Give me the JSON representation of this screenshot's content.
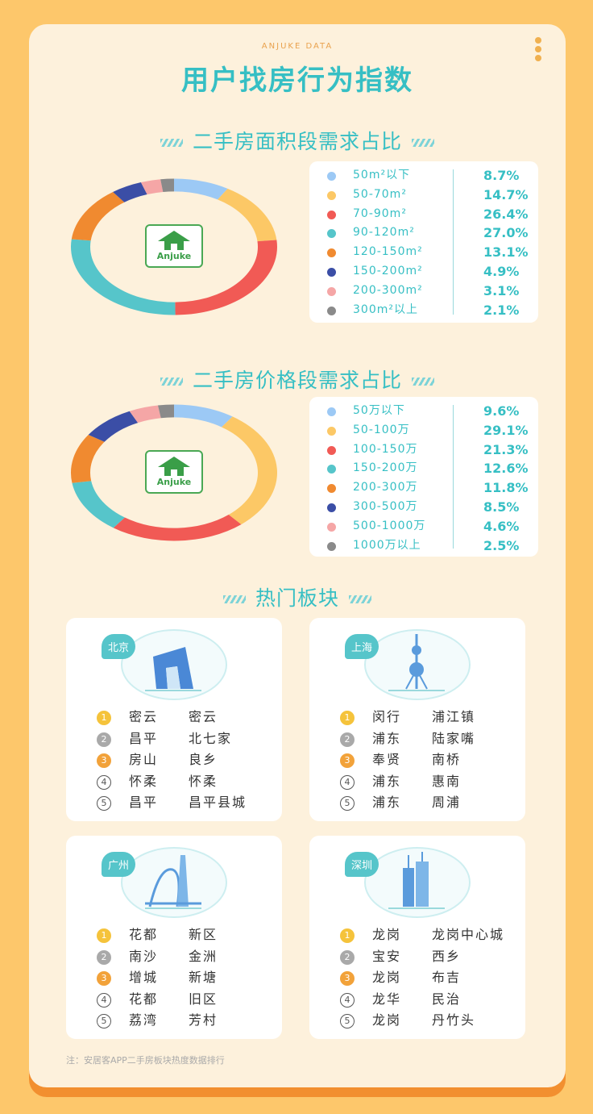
{
  "header": {
    "brand": "ANJUKE DATA",
    "title": "用户找房行为指数"
  },
  "sections": {
    "area": "二手房面积段需求占比",
    "price": "二手房价格段需求占比",
    "hot": "热门板块"
  },
  "logo_text": "Anjuke",
  "chart_data": [
    {
      "type": "pie",
      "title": "二手房面积段需求占比",
      "categories": [
        "50m²以下",
        "50-70m²",
        "70-90m²",
        "90-120m²",
        "120-150m²",
        "150-200m²",
        "200-300m²",
        "300m²以上"
      ],
      "values": [
        8.7,
        14.7,
        26.4,
        27.0,
        13.1,
        4.9,
        3.1,
        2.1
      ],
      "labels": [
        "8.7%",
        "14.7%",
        "26.4%",
        "27.0%",
        "13.1%",
        "4.9%",
        "3.1%",
        "2.1%"
      ],
      "colors": [
        "#9cc9f5",
        "#fcc866",
        "#f15a55",
        "#56c5ca",
        "#f08a30",
        "#3b4ea6",
        "#f5a6a6",
        "#8a8a8a"
      ],
      "legend": "right"
    },
    {
      "type": "pie",
      "title": "二手房价格段需求占比",
      "categories": [
        "50万以下",
        "50-100万",
        "100-150万",
        "150-200万",
        "200-300万",
        "300-500万",
        "500-1000万",
        "1000万以上"
      ],
      "values": [
        9.6,
        29.1,
        21.3,
        12.6,
        11.8,
        8.5,
        4.6,
        2.5
      ],
      "labels": [
        "9.6%",
        "29.1%",
        "21.3%",
        "12.6%",
        "11.8%",
        "8.5%",
        "4.6%",
        "2.5%"
      ],
      "colors": [
        "#9cc9f5",
        "#fcc866",
        "#f15a55",
        "#56c5ca",
        "#f08a30",
        "#3b4ea6",
        "#f5a6a6",
        "#8a8a8a"
      ],
      "legend": "right"
    }
  ],
  "cities": [
    {
      "name": "北京",
      "items": [
        {
          "rank": "1",
          "district": "密云",
          "block": "密云"
        },
        {
          "rank": "2",
          "district": "昌平",
          "block": "北七家"
        },
        {
          "rank": "3",
          "district": "房山",
          "block": "良乡"
        },
        {
          "rank": "4",
          "district": "怀柔",
          "block": "怀柔"
        },
        {
          "rank": "5",
          "district": "昌平",
          "block": "昌平县城"
        }
      ]
    },
    {
      "name": "上海",
      "items": [
        {
          "rank": "1",
          "district": "闵行",
          "block": "浦江镇"
        },
        {
          "rank": "2",
          "district": "浦东",
          "block": "陆家嘴"
        },
        {
          "rank": "3",
          "district": "奉贤",
          "block": "南桥"
        },
        {
          "rank": "4",
          "district": "浦东",
          "block": "惠南"
        },
        {
          "rank": "5",
          "district": "浦东",
          "block": "周浦"
        }
      ]
    },
    {
      "name": "广州",
      "items": [
        {
          "rank": "1",
          "district": "花都",
          "block": "新区"
        },
        {
          "rank": "2",
          "district": "南沙",
          "block": "金洲"
        },
        {
          "rank": "3",
          "district": "增城",
          "block": "新塘"
        },
        {
          "rank": "4",
          "district": "花都",
          "block": "旧区"
        },
        {
          "rank": "5",
          "district": "荔湾",
          "block": "芳村"
        }
      ]
    },
    {
      "name": "深圳",
      "items": [
        {
          "rank": "1",
          "district": "龙岗",
          "block": "龙岗中心城"
        },
        {
          "rank": "2",
          "district": "宝安",
          "block": "西乡"
        },
        {
          "rank": "3",
          "district": "龙岗",
          "block": "布吉"
        },
        {
          "rank": "4",
          "district": "龙华",
          "block": "民治"
        },
        {
          "rank": "5",
          "district": "龙岗",
          "block": "丹竹头"
        }
      ]
    }
  ],
  "note": "注：安居客APP二手房板块热度数据排行"
}
